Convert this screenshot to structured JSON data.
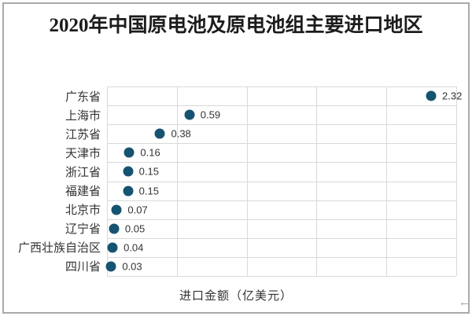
{
  "frame": {
    "background": "#ffffff",
    "border_color": "#aaaaaa"
  },
  "chart_data": {
    "type": "scatter",
    "title": "2020年中国原电池及原电池组主要进口地区",
    "categories": [
      "广东省",
      "上海市",
      "江苏省",
      "天津市",
      "浙江省",
      "福建省",
      "北京市",
      "辽宁省",
      "广西壮族自治区",
      "四川省"
    ],
    "values": [
      2.32,
      0.59,
      0.38,
      0.16,
      0.15,
      0.15,
      0.07,
      0.05,
      0.04,
      0.03
    ],
    "data_labels": [
      "2.32",
      "0.59",
      "0.38",
      "0.16",
      "0.15",
      "0.15",
      "0.07",
      "0.05",
      "0.04",
      "0.03"
    ],
    "xlabel": "进口金额（亿美元）",
    "ylabel": "",
    "xlim": [
      0,
      2.5
    ],
    "x_gridline_step": 0.5,
    "grid": true,
    "legend": "none",
    "marker_color": "#165370",
    "gridline_color": "#d9d9d9",
    "text_color": "#333333",
    "title_color": "#1c1c1c"
  },
  "icons": {
    "resize_arrow": "←"
  }
}
